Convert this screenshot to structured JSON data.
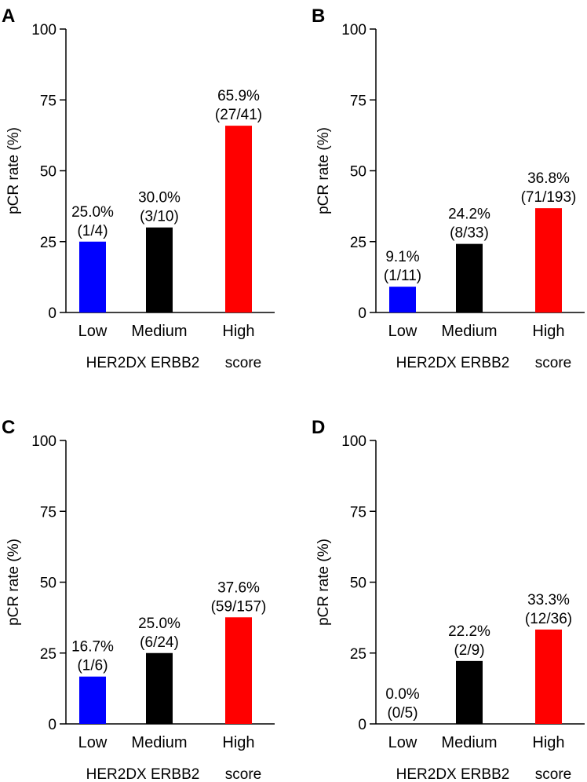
{
  "figure": {
    "ylabel": "pCR rate (%)",
    "xlabel_parts": [
      "HER2DX ERBB2",
      "score"
    ],
    "categories": [
      "Low",
      "Medium",
      "High"
    ],
    "yticks": [
      0,
      25,
      50,
      75,
      100
    ],
    "colors": {
      "Low": "#0000ff",
      "Medium": "#000000",
      "High": "#ff0000"
    }
  },
  "chart_data": [
    {
      "panel": "A",
      "type": "bar",
      "title": "",
      "xlabel": "HER2DX ERBB2 score",
      "ylabel": "pCR rate (%)",
      "ylim": [
        0,
        100
      ],
      "yticks": [
        0,
        25,
        50,
        75,
        100
      ],
      "categories": [
        "Low",
        "Medium",
        "High"
      ],
      "values": [
        25.0,
        30.0,
        65.9
      ],
      "labels": [
        [
          "25.0%",
          "(1/4)"
        ],
        [
          "30.0%",
          "(3/10)"
        ],
        [
          "65.9%",
          "(27/41)"
        ]
      ]
    },
    {
      "panel": "B",
      "type": "bar",
      "title": "",
      "xlabel": "HER2DX ERBB2 score",
      "ylabel": "pCR rate (%)",
      "ylim": [
        0,
        100
      ],
      "yticks": [
        0,
        25,
        50,
        75,
        100
      ],
      "categories": [
        "Low",
        "Medium",
        "High"
      ],
      "values": [
        9.1,
        24.2,
        36.8
      ],
      "labels": [
        [
          "9.1%",
          "(1/11)"
        ],
        [
          "24.2%",
          "(8/33)"
        ],
        [
          "36.8%",
          "(71/193)"
        ]
      ]
    },
    {
      "panel": "C",
      "type": "bar",
      "title": "",
      "xlabel": "HER2DX ERBB2 score",
      "ylabel": "pCR rate (%)",
      "ylim": [
        0,
        100
      ],
      "yticks": [
        0,
        25,
        50,
        75,
        100
      ],
      "categories": [
        "Low",
        "Medium",
        "High"
      ],
      "values": [
        16.7,
        25.0,
        37.6
      ],
      "labels": [
        [
          "16.7%",
          "(1/6)"
        ],
        [
          "25.0%",
          "(6/24)"
        ],
        [
          "37.6%",
          "(59/157)"
        ]
      ]
    },
    {
      "panel": "D",
      "type": "bar",
      "title": "",
      "xlabel": "HER2DX ERBB2 score",
      "ylabel": "pCR rate (%)",
      "ylim": [
        0,
        100
      ],
      "yticks": [
        0,
        25,
        50,
        75,
        100
      ],
      "categories": [
        "Low",
        "Medium",
        "High"
      ],
      "values": [
        0.0,
        22.2,
        33.3
      ],
      "labels": [
        [
          "0.0%",
          "(0/5)"
        ],
        [
          "22.2%",
          "(2/9)"
        ],
        [
          "33.3%",
          "(12/36)"
        ]
      ]
    }
  ]
}
